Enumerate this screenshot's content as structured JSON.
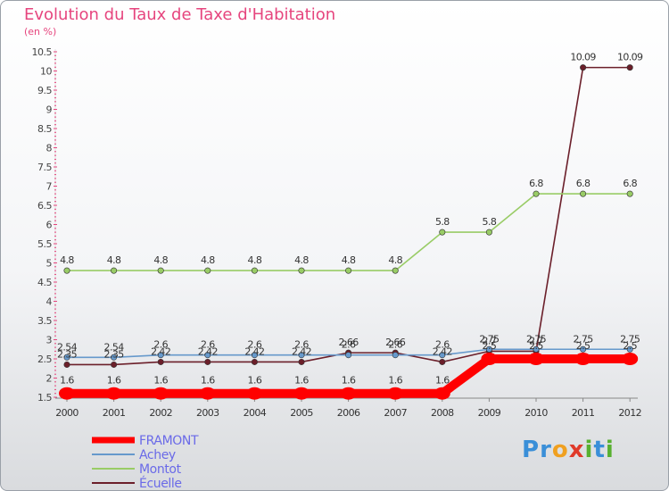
{
  "header": {
    "title": "Evolution du Taux de Taxe d'Habitation",
    "subtitle": "(en %)"
  },
  "chart_data": {
    "type": "line",
    "title": "Evolution du Taux de Taxe d'Habitation",
    "ylabel": "(en %)",
    "xlabel": "",
    "ylim": [
      1.5,
      10.5
    ],
    "yticks": [
      "1.5",
      "2",
      "2.5",
      "3",
      "3.5",
      "4",
      "4.5",
      "5",
      "5.5",
      "6",
      "6.5",
      "7",
      "7.5",
      "8",
      "8.5",
      "9",
      "9.5",
      "10",
      "10.5"
    ],
    "categories": [
      "2000",
      "2001",
      "2002",
      "2003",
      "2004",
      "2005",
      "2006",
      "2007",
      "2008",
      "2009",
      "2010",
      "2011",
      "2012"
    ],
    "series": [
      {
        "name": "FRAMONT",
        "color": "#ff0000",
        "values": [
          1.6,
          1.6,
          1.6,
          1.6,
          1.6,
          1.6,
          1.6,
          1.6,
          1.6,
          2.5,
          2.5,
          2.5,
          2.5
        ],
        "labels": [
          "1.6",
          "1.6",
          "1.6",
          "1.6",
          "1.6",
          "1.6",
          "1.6",
          "1.6",
          "1.6",
          "2.5",
          "2.5",
          "2.5",
          "2.5"
        ]
      },
      {
        "name": "Achey",
        "color": "#6699cc",
        "values": [
          2.54,
          2.54,
          2.6,
          2.6,
          2.6,
          2.6,
          2.6,
          2.6,
          2.6,
          2.75,
          2.75,
          2.75,
          2.75
        ],
        "labels": [
          "2.54",
          "2.54",
          "2.6",
          "2.6",
          "2.6",
          "2.6",
          "2.6",
          "2.6",
          "2.6",
          "2.75",
          "2.75",
          "2.75",
          "2.75"
        ]
      },
      {
        "name": "Montot",
        "color": "#99cc66",
        "values": [
          4.8,
          4.8,
          4.8,
          4.8,
          4.8,
          4.8,
          4.8,
          4.8,
          5.8,
          5.8,
          6.8,
          6.8,
          6.8
        ],
        "labels": [
          "4.8",
          "4.8",
          "4.8",
          "4.8",
          "4.8",
          "4.8",
          "4.8",
          "4.8",
          "5.8",
          "5.8",
          "6.8",
          "6.8",
          "6.8"
        ]
      },
      {
        "name": "Écuelle",
        "color": "#6b1f2a",
        "values": [
          2.35,
          2.35,
          2.42,
          2.42,
          2.42,
          2.42,
          2.66,
          2.66,
          2.42,
          2.7,
          2.7,
          10.09,
          10.09
        ],
        "labels": [
          "2.35",
          "2.35",
          "2.42",
          "2.42",
          "2.42",
          "2.42",
          "2.66",
          "2.66",
          "2.42",
          "2.7",
          "2.7",
          "10.09",
          "10.09"
        ]
      }
    ]
  },
  "logo": {
    "letters": [
      "P",
      "r",
      "o",
      "x",
      "i",
      "t",
      "i"
    ],
    "colors": [
      "#3a8fd8",
      "#3a8fd8",
      "#f0a020",
      "#e03a2a",
      "#58b030",
      "#3a8fd8",
      "#58b030"
    ]
  }
}
